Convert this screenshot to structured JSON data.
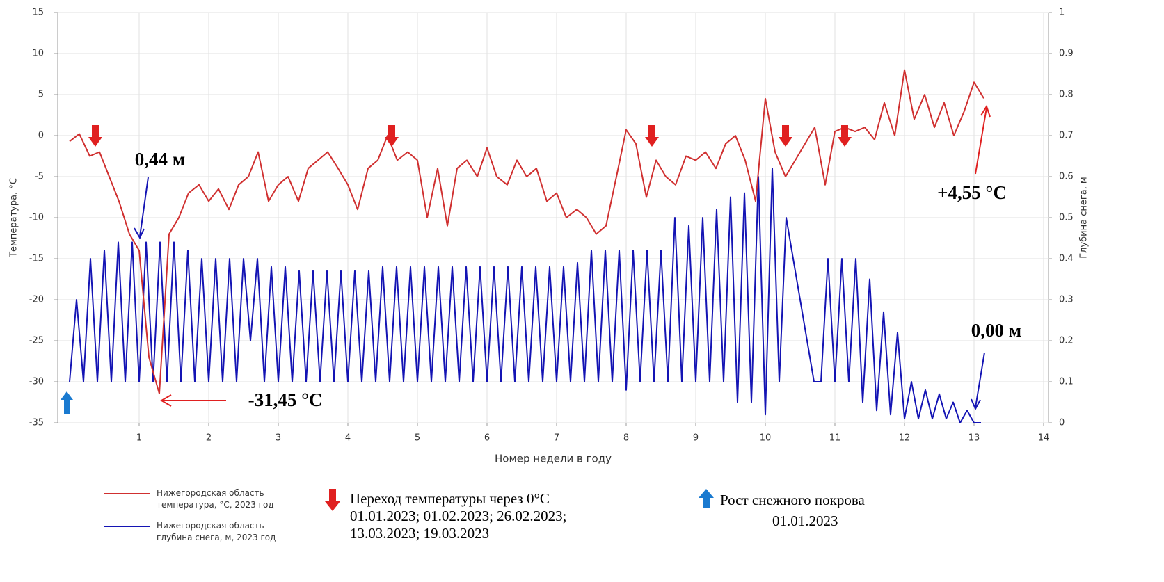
{
  "chart_data": {
    "type": "line",
    "xlabel": "Номер недели в году",
    "ylabel": "Температура, °С",
    "y2label": "Глубина снега, м",
    "xlim": [
      -0.17,
      14.07
    ],
    "xticks": [
      1,
      2,
      3,
      4,
      5,
      6,
      7,
      8,
      9,
      10,
      11,
      12,
      13,
      14
    ],
    "ylim": [
      -35,
      15
    ],
    "yticks": [
      -35,
      -30,
      -25,
      -20,
      -15,
      -10,
      -5,
      0,
      5,
      10,
      15
    ],
    "y2lim": [
      0,
      1
    ],
    "y2ticks": [
      0,
      0.1,
      0.2,
      0.3,
      0.4,
      0.5,
      0.6,
      0.7,
      0.8,
      0.9,
      1
    ],
    "grid": true,
    "series": [
      {
        "name": "Нижегородская область температура, °С, 2023 год",
        "color": "#d03030",
        "x": [
          0,
          0.14,
          0.29,
          0.43,
          0.57,
          0.71,
          0.86,
          1,
          1.14,
          1.29,
          1.43,
          1.57,
          1.71,
          1.86,
          2,
          2.14,
          2.29,
          2.43,
          2.57,
          2.71,
          2.86,
          3,
          3.14,
          3.29,
          3.43,
          3.57,
          3.71,
          3.86,
          4,
          4.14,
          4.29,
          4.43,
          4.57,
          4.71,
          4.86,
          5,
          5.14,
          5.29,
          5.43,
          5.57,
          5.71,
          5.86,
          6,
          6.14,
          6.29,
          6.43,
          6.57,
          6.71,
          6.86,
          7,
          7.14,
          7.29,
          7.43,
          7.57,
          7.71,
          7.86,
          8,
          8.14,
          8.29,
          8.43,
          8.57,
          8.71,
          8.86,
          9,
          9.14,
          9.29,
          9.43,
          9.57,
          9.71,
          9.86,
          10,
          10.14,
          10.29,
          10.43,
          10.57,
          10.71,
          10.86,
          11,
          11.14,
          11.29,
          11.43,
          11.57,
          11.71,
          11.86,
          12,
          12.14,
          12.29,
          12.43,
          12.57,
          12.71,
          12.86,
          13,
          13.14
        ],
        "values": [
          -0.7,
          0.2,
          -2.5,
          -2,
          -5,
          -8,
          -12,
          -14,
          -27,
          -31.45,
          -12,
          -10,
          -7,
          -6,
          -8,
          -6.5,
          -9,
          -6,
          -5,
          -2,
          -8,
          -6,
          -5,
          -8,
          -4,
          -3,
          -2,
          -4,
          -6,
          -9,
          -4,
          -3,
          0,
          -3,
          -2,
          -3,
          -10,
          -4,
          -11,
          -4,
          -3,
          -5,
          -1.5,
          -5,
          -6,
          -3,
          -5,
          -4,
          -8,
          -7,
          -10,
          -9,
          -10,
          -12,
          -11,
          -5,
          0.7,
          -1,
          -7.5,
          -3,
          -5,
          -6,
          -2.5,
          -3,
          -2,
          -4,
          -1,
          0,
          -3,
          -8,
          4.5,
          -2,
          -5,
          -3,
          -1,
          1,
          -6,
          0.5,
          1,
          0.5,
          1,
          -0.5,
          4,
          0,
          8,
          2,
          5,
          1,
          4,
          0,
          3,
          6.5,
          4.55
        ]
      },
      {
        "name": "Нижегородская область глубина снега, м, 2023 год",
        "color": "#1414b4",
        "axis": "y2",
        "x": [
          0,
          0.1,
          0.2,
          0.3,
          0.4,
          0.5,
          0.6,
          0.7,
          0.8,
          0.9,
          1,
          1.1,
          1.2,
          1.3,
          1.4,
          1.5,
          1.6,
          1.7,
          1.8,
          1.9,
          2,
          2.1,
          2.2,
          2.3,
          2.4,
          2.5,
          2.6,
          2.7,
          2.8,
          2.9,
          3,
          3.1,
          3.2,
          3.3,
          3.4,
          3.5,
          3.6,
          3.7,
          3.8,
          3.9,
          4,
          4.1,
          4.2,
          4.3,
          4.4,
          4.5,
          4.6,
          4.7,
          4.8,
          4.9,
          5,
          5.1,
          5.2,
          5.3,
          5.4,
          5.5,
          5.6,
          5.7,
          5.8,
          5.9,
          6,
          6.1,
          6.2,
          6.3,
          6.4,
          6.5,
          6.6,
          6.7,
          6.8,
          6.9,
          7,
          7.1,
          7.2,
          7.3,
          7.4,
          7.5,
          7.6,
          7.7,
          7.8,
          7.9,
          8,
          8.1,
          8.2,
          8.3,
          8.4,
          8.5,
          8.6,
          8.7,
          8.8,
          8.9,
          9,
          9.1,
          9.2,
          9.3,
          9.4,
          9.5,
          9.6,
          9.7,
          9.8,
          9.9,
          10,
          10.1,
          10.2,
          10.3,
          10.4,
          10.5,
          10.6,
          10.7,
          10.8,
          10.9,
          11,
          11.1,
          11.2,
          11.3,
          11.4,
          11.5,
          11.6,
          11.7,
          11.8,
          11.9,
          12,
          12.1,
          12.2,
          12.3,
          12.4,
          12.5,
          12.6,
          12.7,
          12.8,
          12.9,
          13,
          13.1
        ],
        "values": [
          0.1,
          0.3,
          0.1,
          0.4,
          0.1,
          0.42,
          0.1,
          0.44,
          0.1,
          0.44,
          0.1,
          0.44,
          0.1,
          0.44,
          0.1,
          0.44,
          0.1,
          0.42,
          0.1,
          0.4,
          0.1,
          0.4,
          0.1,
          0.4,
          0.1,
          0.4,
          0.2,
          0.4,
          0.1,
          0.38,
          0.1,
          0.38,
          0.1,
          0.37,
          0.1,
          0.37,
          0.1,
          0.37,
          0.1,
          0.37,
          0.1,
          0.37,
          0.1,
          0.37,
          0.1,
          0.38,
          0.1,
          0.38,
          0.1,
          0.38,
          0.1,
          0.38,
          0.1,
          0.38,
          0.1,
          0.38,
          0.1,
          0.38,
          0.1,
          0.38,
          0.1,
          0.38,
          0.1,
          0.38,
          0.1,
          0.38,
          0.1,
          0.38,
          0.1,
          0.38,
          0.1,
          0.38,
          0.1,
          0.39,
          0.1,
          0.42,
          0.1,
          0.42,
          0.1,
          0.42,
          0.08,
          0.42,
          0.1,
          0.42,
          0.1,
          0.42,
          0.1,
          0.5,
          0.1,
          0.48,
          0.1,
          0.5,
          0.1,
          0.52,
          0.1,
          0.55,
          0.05,
          0.56,
          0.05,
          0.6,
          0.02,
          0.62,
          0.1,
          0.5,
          0.4,
          0.3,
          0.2,
          0.1,
          0.1,
          0.4,
          0.1,
          0.4,
          0.1,
          0.4,
          0.05,
          0.35,
          0.03,
          0.27,
          0.02,
          0.22,
          0.01,
          0.1,
          0.01,
          0.08,
          0.01,
          0.07,
          0.01,
          0.05,
          0,
          0.03,
          0,
          0
        ]
      }
    ],
    "annotations": [
      "0,44 м",
      "-31,45 °C",
      "+4,55 °C",
      "0,00 м"
    ],
    "notes": {
      "transition_title": "Переход температуры через 0°C",
      "transition_dates": "01.01.2023; 01.02.2023; 26.02.2023; 13.03.2023; 19.03.2023",
      "snow_title": "Рост снежного покрова",
      "snow_date": "01.01.2023"
    }
  }
}
